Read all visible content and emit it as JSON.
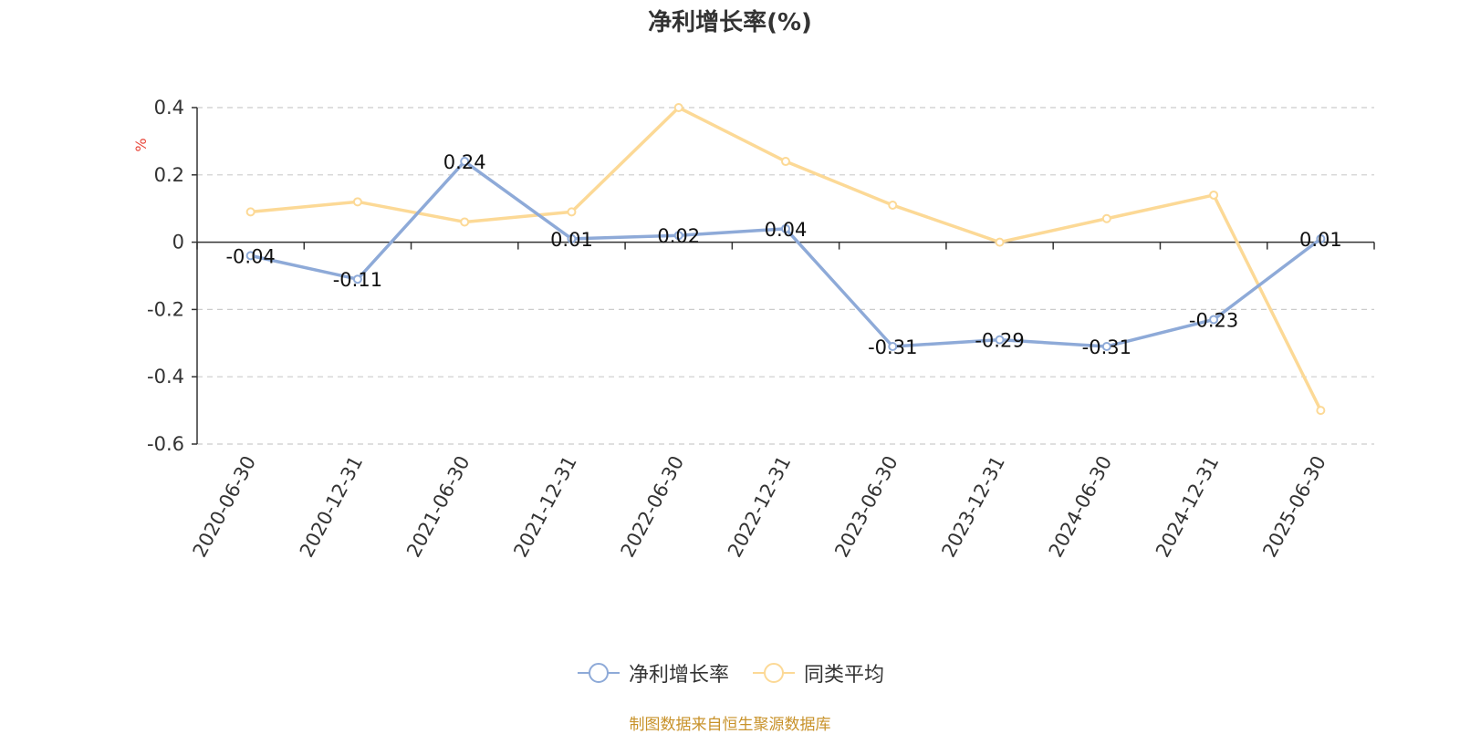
{
  "chart_data": {
    "type": "line",
    "title": "净利增长率(%)",
    "ylabel": "%",
    "categories": [
      "2020-06-30",
      "2020-12-31",
      "2021-06-30",
      "2021-12-31",
      "2022-06-30",
      "2022-12-31",
      "2023-06-30",
      "2023-12-31",
      "2024-06-30",
      "2024-12-31",
      "2025-06-30"
    ],
    "ylim": [
      -0.6,
      0.4
    ],
    "yticks": [
      0.4,
      0.2,
      0,
      -0.2,
      -0.4,
      -0.6
    ],
    "ytick_labels": [
      "0.4",
      "0.2",
      "0",
      "-0.2",
      "-0.4",
      "-0.6"
    ],
    "grid": true,
    "legend_position": "bottom",
    "series": [
      {
        "name": "净利增长率",
        "color": "#8eaad8",
        "show_labels": true,
        "values": [
          -0.04,
          -0.11,
          0.24,
          0.01,
          0.02,
          0.04,
          -0.31,
          -0.29,
          -0.31,
          -0.23,
          0.01
        ]
      },
      {
        "name": "同类平均",
        "color": "#fcd996",
        "show_labels": false,
        "values": [
          0.09,
          0.12,
          0.06,
          0.09,
          0.4,
          0.24,
          0.11,
          0.0,
          0.07,
          0.14,
          -0.5
        ]
      }
    ]
  },
  "source_note": "制图数据来自恒生聚源数据库",
  "colors": {
    "axis": "#333333",
    "grid": "#cccccc",
    "unit_label": "#e8463a",
    "source": "#c8922a"
  }
}
